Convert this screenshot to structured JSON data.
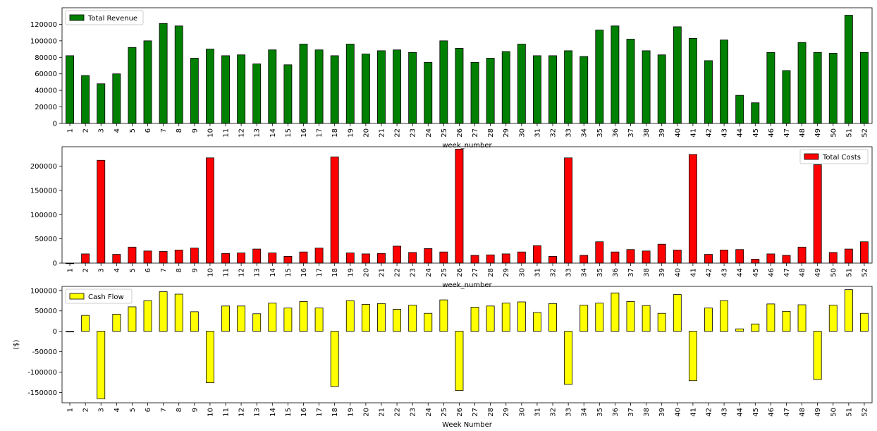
{
  "chart_data": [
    {
      "type": "bar",
      "xlabel": "week_number",
      "ylabel": "",
      "ylim": [
        0,
        140000
      ],
      "yticks": [
        0,
        20000,
        40000,
        60000,
        80000,
        100000,
        120000
      ],
      "legend_position": "top-left",
      "series": [
        {
          "name": "Total Revenue",
          "color": "#008000",
          "values": [
            82000,
            58000,
            48000,
            60000,
            92000,
            100000,
            121000,
            118000,
            79000,
            90000,
            82000,
            83000,
            72000,
            89000,
            71000,
            96000,
            89000,
            82000,
            96000,
            84000,
            88000,
            89000,
            86000,
            74000,
            100000,
            91000,
            74000,
            79000,
            87000,
            96000,
            82000,
            82000,
            88000,
            81000,
            113000,
            118000,
            102000,
            88000,
            83000,
            117000,
            103000,
            76000,
            101000,
            34000,
            25000,
            86000,
            64000,
            98000,
            86000,
            85000,
            131000,
            86000
          ]
        }
      ],
      "categories": [
        "1",
        "2",
        "3",
        "4",
        "5",
        "6",
        "7",
        "8",
        "9",
        "10",
        "11",
        "12",
        "13",
        "14",
        "15",
        "16",
        "17",
        "18",
        "19",
        "20",
        "21",
        "22",
        "23",
        "24",
        "25",
        "26",
        "27",
        "28",
        "29",
        "30",
        "31",
        "32",
        "33",
        "34",
        "35",
        "36",
        "37",
        "38",
        "39",
        "40",
        "41",
        "42",
        "43",
        "44",
        "45",
        "46",
        "47",
        "48",
        "49",
        "50",
        "51",
        "52"
      ]
    },
    {
      "type": "bar",
      "xlabel": "week_number",
      "ylabel": "",
      "ylim": [
        0,
        240000
      ],
      "yticks": [
        0,
        50000,
        100000,
        150000,
        200000
      ],
      "legend_position": "top-right",
      "series": [
        {
          "name": "Total Costs",
          "color": "#ff0000",
          "values": [
            0,
            19000,
            212000,
            18000,
            33000,
            25000,
            24000,
            27000,
            31000,
            217000,
            20000,
            21000,
            29000,
            21000,
            14000,
            23000,
            31000,
            219000,
            21000,
            19000,
            20000,
            35000,
            22000,
            30000,
            23000,
            235000,
            16000,
            17000,
            19000,
            23000,
            36000,
            14000,
            217000,
            16000,
            44000,
            23000,
            28000,
            25000,
            39000,
            27000,
            224000,
            18000,
            27000,
            28000,
            8000,
            19000,
            16000,
            33000,
            203000,
            22000,
            29000,
            44000
          ]
        }
      ],
      "categories": [
        "1",
        "2",
        "3",
        "4",
        "5",
        "6",
        "7",
        "8",
        "9",
        "10",
        "11",
        "12",
        "13",
        "14",
        "15",
        "16",
        "17",
        "18",
        "19",
        "20",
        "21",
        "22",
        "23",
        "24",
        "25",
        "26",
        "27",
        "28",
        "29",
        "30",
        "31",
        "32",
        "33",
        "34",
        "35",
        "36",
        "37",
        "38",
        "39",
        "40",
        "41",
        "42",
        "43",
        "44",
        "45",
        "46",
        "47",
        "48",
        "49",
        "50",
        "51",
        "52"
      ]
    },
    {
      "type": "bar",
      "xlabel": "Week Number",
      "ylabel": "($)",
      "ylim": [
        -175000,
        110000
      ],
      "yticks": [
        -150000,
        -100000,
        -50000,
        0,
        50000,
        100000
      ],
      "legend_position": "top-left",
      "series": [
        {
          "name": "Cash Flow",
          "color": "#ffff00",
          "values": [
            0,
            39000,
            -165000,
            42000,
            60000,
            75000,
            97000,
            91000,
            48000,
            -126000,
            62000,
            62000,
            43000,
            69000,
            57000,
            73000,
            57000,
            -135000,
            75000,
            66000,
            68000,
            54000,
            64000,
            44000,
            77000,
            -145000,
            59000,
            62000,
            69000,
            72000,
            46000,
            68000,
            -130000,
            64000,
            69000,
            94000,
            73000,
            63000,
            44000,
            90000,
            -121000,
            57000,
            75000,
            6000,
            18000,
            67000,
            49000,
            65000,
            -118000,
            64000,
            102000,
            44000
          ]
        }
      ],
      "categories": [
        "1",
        "2",
        "3",
        "4",
        "5",
        "6",
        "7",
        "8",
        "9",
        "10",
        "11",
        "12",
        "13",
        "14",
        "15",
        "16",
        "17",
        "18",
        "19",
        "20",
        "21",
        "22",
        "23",
        "24",
        "25",
        "26",
        "27",
        "28",
        "29",
        "30",
        "31",
        "32",
        "33",
        "34",
        "35",
        "36",
        "37",
        "38",
        "39",
        "40",
        "41",
        "42",
        "43",
        "44",
        "45",
        "46",
        "47",
        "48",
        "49",
        "50",
        "51",
        "52"
      ]
    }
  ]
}
